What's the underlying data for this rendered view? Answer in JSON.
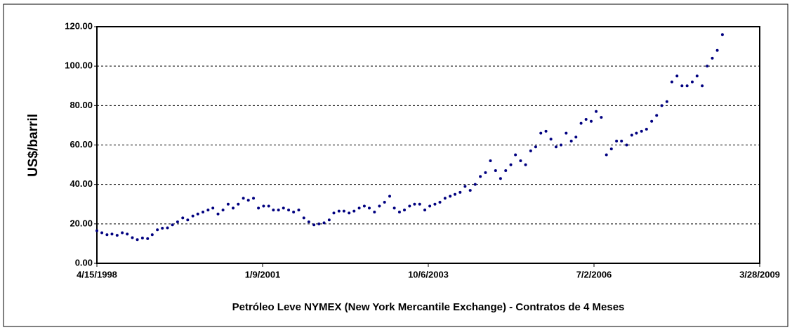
{
  "chart_data": {
    "type": "scatter",
    "x_axis_title": "Petróleo Leve NYMEX (New York Mercantile Exchange) - Contratos de 4 Meses",
    "y_axis_title": "US$/barril",
    "color": "#000080",
    "grid": true,
    "xlim": [
      "4/15/1998",
      "3/28/2009"
    ],
    "xticks": [
      "4/15/1998",
      "1/9/2001",
      "10/6/2003",
      "7/2/2006",
      "3/28/2009"
    ],
    "ylim": [
      0,
      120
    ],
    "yticks": [
      {
        "value": 0,
        "label": "0.00"
      },
      {
        "value": 20,
        "label": "20.00"
      },
      {
        "value": 40,
        "label": "40.00"
      },
      {
        "value": 60,
        "label": "60.00"
      },
      {
        "value": 80,
        "label": "80.00"
      },
      {
        "value": 100,
        "label": "100.00"
      },
      {
        "value": 120,
        "label": "120.00"
      }
    ],
    "x": [
      "4/15/1998",
      "5/15/1998",
      "6/15/1998",
      "7/15/1998",
      "8/15/1998",
      "9/15/1998",
      "10/15/1998",
      "11/15/1998",
      "12/15/1998",
      "1/15/1999",
      "2/15/1999",
      "3/15/1999",
      "4/15/1999",
      "5/15/1999",
      "6/15/1999",
      "7/15/1999",
      "8/15/1999",
      "9/15/1999",
      "10/15/1999",
      "11/15/1999",
      "12/15/1999",
      "1/15/2000",
      "2/15/2000",
      "3/15/2000",
      "4/15/2000",
      "5/15/2000",
      "6/15/2000",
      "7/15/2000",
      "8/15/2000",
      "9/15/2000",
      "10/15/2000",
      "11/15/2000",
      "12/15/2000",
      "1/15/2001",
      "2/15/2001",
      "3/15/2001",
      "4/15/2001",
      "5/15/2001",
      "6/15/2001",
      "7/15/2001",
      "8/15/2001",
      "9/15/2001",
      "10/15/2001",
      "11/15/2001",
      "12/15/2001",
      "1/15/2002",
      "2/15/2002",
      "3/15/2002",
      "4/15/2002",
      "5/15/2002",
      "6/15/2002",
      "7/15/2002",
      "8/15/2002",
      "9/15/2002",
      "10/15/2002",
      "11/15/2002",
      "12/15/2002",
      "1/15/2003",
      "2/15/2003",
      "3/15/2003",
      "4/15/2003",
      "5/15/2003",
      "6/15/2003",
      "7/15/2003",
      "8/15/2003",
      "9/15/2003",
      "10/15/2003",
      "11/15/2003",
      "12/15/2003",
      "1/15/2004",
      "2/15/2004",
      "3/15/2004",
      "4/15/2004",
      "5/15/2004",
      "6/15/2004",
      "7/15/2004",
      "8/15/2004",
      "9/15/2004",
      "10/15/2004",
      "11/15/2004",
      "12/15/2004",
      "1/15/2005",
      "2/15/2005",
      "3/15/2005",
      "4/15/2005",
      "5/15/2005",
      "6/15/2005",
      "7/15/2005",
      "8/15/2005",
      "9/15/2005",
      "10/15/2005",
      "11/15/2005",
      "12/15/2005",
      "1/15/2006",
      "2/15/2006",
      "3/15/2006",
      "4/15/2006",
      "5/15/2006",
      "6/15/2006",
      "7/15/2006",
      "8/15/2006",
      "9/15/2006",
      "10/15/2006",
      "11/15/2006",
      "12/15/2006",
      "1/15/2007",
      "2/15/2007",
      "3/15/2007",
      "4/15/2007",
      "5/15/2007",
      "6/15/2007",
      "7/15/2007",
      "8/15/2007",
      "9/15/2007",
      "10/15/2007",
      "11/15/2007",
      "12/15/2007",
      "1/15/2008",
      "2/15/2008",
      "3/15/2008",
      "4/15/2008",
      "5/15/2008",
      "6/15/2008",
      "7/15/2008",
      "8/15/2008"
    ],
    "values": [
      16.5,
      15.5,
      14.5,
      14.8,
      14.2,
      15.5,
      14.8,
      13,
      12,
      12.8,
      12.5,
      14.5,
      17,
      17.8,
      18,
      19.5,
      21,
      23,
      22,
      24,
      25,
      26,
      27,
      28,
      25,
      27,
      30,
      28,
      30,
      33,
      32,
      33,
      28,
      29,
      29,
      27,
      27,
      28,
      27,
      26,
      27,
      23,
      21,
      19.5,
      20,
      20.5,
      22,
      25.5,
      26.5,
      26.5,
      25.5,
      26.5,
      28,
      29,
      28,
      26,
      29,
      31,
      34,
      28,
      26,
      27,
      29,
      30,
      30,
      27,
      29,
      30,
      31,
      33,
      34,
      35,
      36,
      39,
      37,
      40,
      44,
      46,
      52,
      47,
      43,
      47,
      50,
      55,
      52,
      50,
      57,
      59,
      66,
      67,
      63,
      59,
      60,
      66,
      62,
      64,
      71,
      73,
      72,
      77,
      74,
      55,
      58,
      62,
      62,
      60,
      65,
      66,
      67,
      68,
      72,
      75,
      80,
      82,
      92,
      95,
      90,
      90,
      92,
      95,
      90,
      100,
      104,
      108,
      116
    ]
  }
}
